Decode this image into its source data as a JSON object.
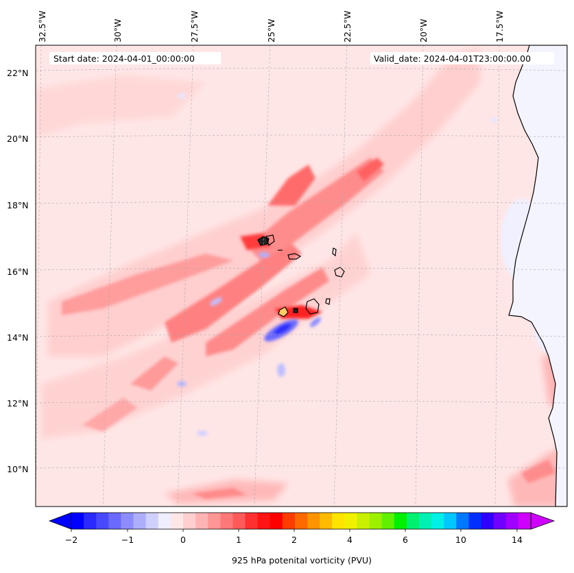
{
  "header": {
    "start_date": "Start date: 2024-04-01_00:00:00",
    "valid_date": "Valid_date: 2024-04-01T23:00:00.00"
  },
  "map": {
    "longitude_labels": [
      "32.5°W",
      "30°W",
      "27.5°W",
      "25°W",
      "22.5°W",
      "20°W",
      "17.5°W"
    ],
    "latitude_labels": [
      "22°N",
      "20°N",
      "18°N",
      "16°N",
      "14°N",
      "12°N",
      "10°N"
    ],
    "gridlines": "dashed",
    "coastlines": true,
    "field": "925 hPa potential vorticity"
  },
  "colorbar": {
    "label": "925 hPa potenital vorticity (PVU)",
    "tick_labels": [
      "−2",
      "−1",
      "0",
      "1",
      "2",
      "4",
      "6",
      "10",
      "14"
    ],
    "extend": "both",
    "colors": [
      "#0000ff",
      "#2a2aff",
      "#4848ff",
      "#6a6aff",
      "#8c8cff",
      "#aeaeff",
      "#d0d0ff",
      "#eeeeff",
      "#ffe6e6",
      "#ffcece",
      "#ffb4b4",
      "#ff9696",
      "#ff7878",
      "#ff5a5a",
      "#ff3030",
      "#ff1414",
      "#ff0000",
      "#ff3c00",
      "#ff6a00",
      "#ff9400",
      "#ffbb00",
      "#ffe400",
      "#f0f000",
      "#c8f000",
      "#9cf000",
      "#60f000",
      "#00f000",
      "#00f070",
      "#00f0b4",
      "#00f0e6",
      "#00c8ff",
      "#0078ff",
      "#0030ff",
      "#3000ff",
      "#7000ff",
      "#a000ff",
      "#d000ff"
    ],
    "under_color": "#0000ff",
    "over_color": "#d000ff"
  }
}
